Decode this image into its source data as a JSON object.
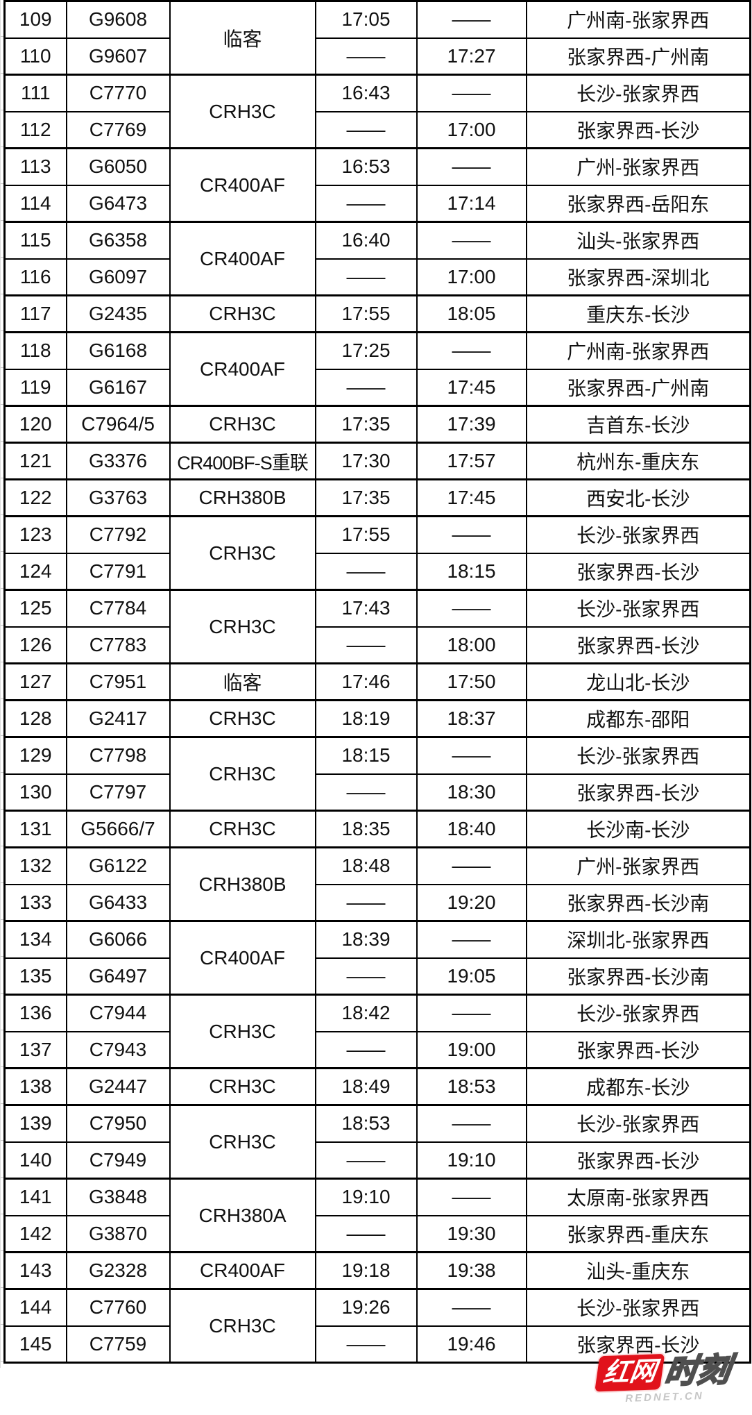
{
  "table": {
    "empty_marker": "——",
    "groups": [
      {
        "type": "临客",
        "rows": [
          {
            "num": "109",
            "train": "G9608",
            "dep": "17:05",
            "arr": "——",
            "route": "广州南-张家界西"
          },
          {
            "num": "110",
            "train": "G9607",
            "dep": "——",
            "arr": "17:27",
            "route": "张家界西-广州南"
          }
        ]
      },
      {
        "type": "CRH3C",
        "rows": [
          {
            "num": "111",
            "train": "C7770",
            "dep": "16:43",
            "arr": "——",
            "route": "长沙-张家界西"
          },
          {
            "num": "112",
            "train": "C7769",
            "dep": "——",
            "arr": "17:00",
            "route": "张家界西-长沙"
          }
        ]
      },
      {
        "type": "CR400AF",
        "rows": [
          {
            "num": "113",
            "train": "G6050",
            "dep": "16:53",
            "arr": "——",
            "route": "广州-张家界西"
          },
          {
            "num": "114",
            "train": "G6473",
            "dep": "——",
            "arr": "17:14",
            "route": "张家界西-岳阳东"
          }
        ]
      },
      {
        "type": "CR400AF",
        "rows": [
          {
            "num": "115",
            "train": "G6358",
            "dep": "16:40",
            "arr": "——",
            "route": "汕头-张家界西"
          },
          {
            "num": "116",
            "train": "G6097",
            "dep": "——",
            "arr": "17:00",
            "route": "张家界西-深圳北"
          }
        ]
      },
      {
        "type": "CRH3C",
        "rows": [
          {
            "num": "117",
            "train": "G2435",
            "dep": "17:55",
            "arr": "18:05",
            "route": "重庆东-长沙"
          }
        ]
      },
      {
        "type": "CR400AF",
        "rows": [
          {
            "num": "118",
            "train": "G6168",
            "dep": "17:25",
            "arr": "——",
            "route": "广州南-张家界西"
          },
          {
            "num": "119",
            "train": "G6167",
            "dep": "——",
            "arr": "17:45",
            "route": "张家界西-广州南"
          }
        ]
      },
      {
        "type": "CRH3C",
        "rows": [
          {
            "num": "120",
            "train": "C7964/5",
            "dep": "17:35",
            "arr": "17:39",
            "route": "吉首东-长沙"
          }
        ]
      },
      {
        "type": "CR400BF-S重联",
        "rows": [
          {
            "num": "121",
            "train": "G3376",
            "dep": "17:30",
            "arr": "17:57",
            "route": "杭州东-重庆东"
          }
        ]
      },
      {
        "type": "CRH380B",
        "rows": [
          {
            "num": "122",
            "train": "G3763",
            "dep": "17:35",
            "arr": "17:45",
            "route": "西安北-长沙"
          }
        ]
      },
      {
        "type": "CRH3C",
        "rows": [
          {
            "num": "123",
            "train": "C7792",
            "dep": "17:55",
            "arr": "——",
            "route": "长沙-张家界西"
          },
          {
            "num": "124",
            "train": "C7791",
            "dep": "——",
            "arr": "18:15",
            "route": "张家界西-长沙"
          }
        ]
      },
      {
        "type": "CRH3C",
        "rows": [
          {
            "num": "125",
            "train": "C7784",
            "dep": "17:43",
            "arr": "——",
            "route": "长沙-张家界西"
          },
          {
            "num": "126",
            "train": "C7783",
            "dep": "——",
            "arr": "18:00",
            "route": "张家界西-长沙"
          }
        ]
      },
      {
        "type": "临客",
        "rows": [
          {
            "num": "127",
            "train": "C7951",
            "dep": "17:46",
            "arr": "17:50",
            "route": "龙山北-长沙"
          }
        ]
      },
      {
        "type": "CRH3C",
        "rows": [
          {
            "num": "128",
            "train": "G2417",
            "dep": "18:19",
            "arr": "18:37",
            "route": "成都东-邵阳"
          }
        ]
      },
      {
        "type": "CRH3C",
        "rows": [
          {
            "num": "129",
            "train": "C7798",
            "dep": "18:15",
            "arr": "——",
            "route": "长沙-张家界西"
          },
          {
            "num": "130",
            "train": "C7797",
            "dep": "——",
            "arr": "18:30",
            "route": "张家界西-长沙"
          }
        ]
      },
      {
        "type": "CRH3C",
        "rows": [
          {
            "num": "131",
            "train": "G5666/7",
            "dep": "18:35",
            "arr": "18:40",
            "route": "长沙南-长沙"
          }
        ]
      },
      {
        "type": "CRH380B",
        "rows": [
          {
            "num": "132",
            "train": "G6122",
            "dep": "18:48",
            "arr": "——",
            "route": "广州-张家界西"
          },
          {
            "num": "133",
            "train": "G6433",
            "dep": "——",
            "arr": "19:20",
            "route": "张家界西-长沙南"
          }
        ]
      },
      {
        "type": "CR400AF",
        "rows": [
          {
            "num": "134",
            "train": "G6066",
            "dep": "18:39",
            "arr": "——",
            "route": "深圳北-张家界西"
          },
          {
            "num": "135",
            "train": "G6497",
            "dep": "——",
            "arr": "19:05",
            "route": "张家界西-长沙南"
          }
        ]
      },
      {
        "type": "CRH3C",
        "rows": [
          {
            "num": "136",
            "train": "C7944",
            "dep": "18:42",
            "arr": "——",
            "route": "长沙-张家界西"
          },
          {
            "num": "137",
            "train": "C7943",
            "dep": "——",
            "arr": "19:00",
            "route": "张家界西-长沙"
          }
        ]
      },
      {
        "type": "CRH3C",
        "rows": [
          {
            "num": "138",
            "train": "G2447",
            "dep": "18:49",
            "arr": "18:53",
            "route": "成都东-长沙"
          }
        ]
      },
      {
        "type": "CRH3C",
        "rows": [
          {
            "num": "139",
            "train": "C7950",
            "dep": "18:53",
            "arr": "——",
            "route": "长沙-张家界西"
          },
          {
            "num": "140",
            "train": "C7949",
            "dep": "——",
            "arr": "19:10",
            "route": "张家界西-长沙"
          }
        ]
      },
      {
        "type": "CRH380A",
        "rows": [
          {
            "num": "141",
            "train": "G3848",
            "dep": "19:10",
            "arr": "——",
            "route": "太原南-张家界西"
          },
          {
            "num": "142",
            "train": "G3870",
            "dep": "——",
            "arr": "19:30",
            "route": "张家界西-重庆东"
          }
        ]
      },
      {
        "type": "CR400AF",
        "rows": [
          {
            "num": "143",
            "train": "G2328",
            "dep": "19:18",
            "arr": "19:38",
            "route": "汕头-重庆东"
          }
        ]
      },
      {
        "type": "CRH3C",
        "rows": [
          {
            "num": "144",
            "train": "C7760",
            "dep": "19:26",
            "arr": "——",
            "route": "长沙-张家界西"
          },
          {
            "num": "145",
            "train": "C7759",
            "dep": "——",
            "arr": "19:46",
            "route": "张家界西-长沙"
          }
        ]
      }
    ]
  },
  "watermark": {
    "brand_red": "红网",
    "brand_outline": "时刻",
    "site": "REDNET.CN",
    "red": "#e1121b"
  }
}
